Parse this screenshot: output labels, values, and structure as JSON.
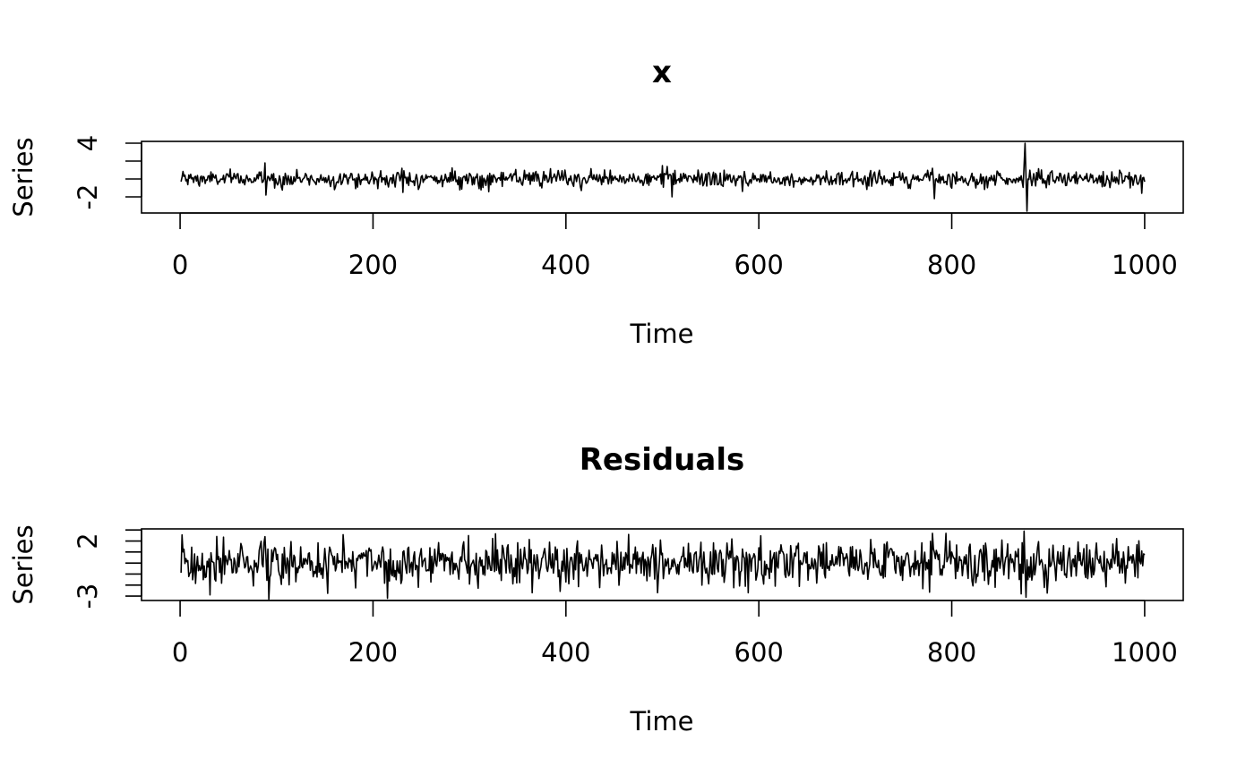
{
  "chart_data": [
    {
      "type": "line",
      "title": "x",
      "xlabel": "Time",
      "ylabel": "Series",
      "xlim": [
        -40,
        1040
      ],
      "ylim": [
        -3.8,
        4.2
      ],
      "x_ticks": [
        0,
        200,
        400,
        600,
        800,
        1000
      ],
      "x_tick_labels": [
        "0",
        "200",
        "400",
        "600",
        "800",
        "1000"
      ],
      "y_ticks": [
        -2,
        0,
        2,
        4
      ],
      "y_tick_labels": [
        "-2",
        "",
        "",
        "4"
      ],
      "grid": false,
      "series": [
        {
          "x_start": 1,
          "x_step": 1,
          "n": 1000,
          "noise_sd": 0.45,
          "base": 0,
          "spikes": [
            {
              "x": 88,
              "value": 1.8
            },
            {
              "x": 89,
              "value": -1.8
            },
            {
              "x": 230,
              "value": 1.2
            },
            {
              "x": 231,
              "value": -1.5
            },
            {
              "x": 500,
              "value": 1.5
            },
            {
              "x": 505,
              "value": 1.4
            },
            {
              "x": 510,
              "value": -2.0
            },
            {
              "x": 583,
              "value": -1.4
            },
            {
              "x": 780,
              "value": 1.2
            },
            {
              "x": 782,
              "value": -2.2
            },
            {
              "x": 875,
              "value": 1.5
            },
            {
              "x": 876,
              "value": 4.0
            },
            {
              "x": 878,
              "value": -3.6
            },
            {
              "x": 997,
              "value": -1.6
            }
          ]
        }
      ]
    },
    {
      "type": "line",
      "title": "Residuals",
      "xlabel": "Time",
      "ylabel": "Series",
      "xlim": [
        -40,
        1040
      ],
      "ylim": [
        -3.4,
        3.1
      ],
      "x_ticks": [
        0,
        200,
        400,
        600,
        800,
        1000
      ],
      "x_tick_labels": [
        "0",
        "200",
        "400",
        "600",
        "800",
        "1000"
      ],
      "y_ticks": [
        -3,
        -2,
        -1,
        0,
        1,
        2,
        3
      ],
      "y_tick_labels": [
        "-3",
        "",
        "",
        "",
        "",
        "2",
        ""
      ],
      "grid": false,
      "series": [
        {
          "x_start": 1,
          "x_step": 1,
          "n": 1000,
          "noise_sd": 1.0,
          "base": 0,
          "spikes": [
            {
              "x": 88,
              "value": 2.4
            },
            {
              "x": 215,
              "value": -3.2
            },
            {
              "x": 365,
              "value": -2.7
            },
            {
              "x": 465,
              "value": 2.6
            },
            {
              "x": 495,
              "value": -2.7
            },
            {
              "x": 780,
              "value": 2.7
            },
            {
              "x": 872,
              "value": -2.8
            },
            {
              "x": 875,
              "value": 2.9
            },
            {
              "x": 877,
              "value": -3.1
            }
          ]
        }
      ]
    }
  ]
}
